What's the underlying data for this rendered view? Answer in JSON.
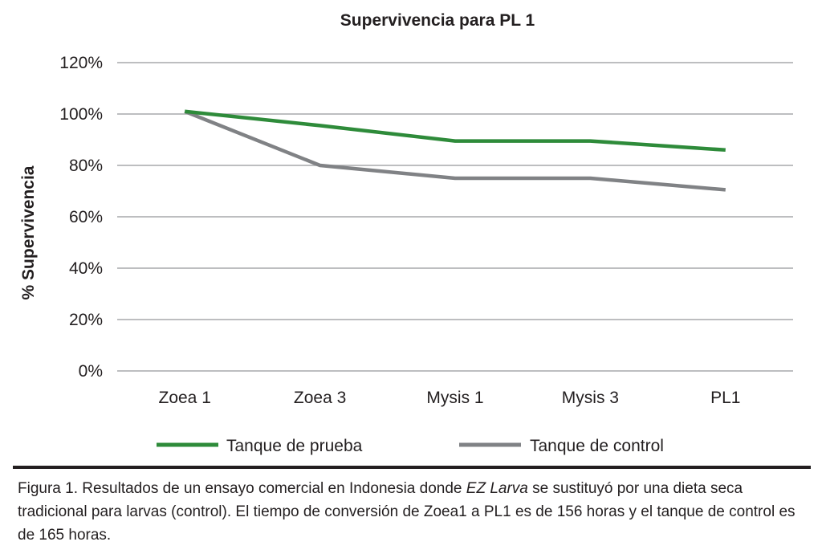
{
  "chart_data": {
    "type": "line",
    "title": "Supervivencia para PL 1",
    "xlabel": "",
    "ylabel": "% Supervivencia",
    "categories": [
      "Zoea 1",
      "Zoea 3",
      "Mysis 1",
      "Mysis 3",
      "PL1"
    ],
    "ylim": [
      0,
      120
    ],
    "yticks": [
      0,
      20,
      40,
      60,
      80,
      100,
      120
    ],
    "ytick_labels": [
      "0%",
      "20%",
      "40%",
      "60%",
      "80%",
      "100%",
      "120%"
    ],
    "grid": true,
    "legend_position": "bottom",
    "series": [
      {
        "name": "Tanque de prueba",
        "color": "#2e8b3a",
        "values": [
          101,
          95.5,
          89.5,
          89.5,
          86
        ]
      },
      {
        "name": "Tanque de control",
        "color": "#808285",
        "values": [
          101,
          80,
          75,
          75,
          70.5
        ]
      }
    ]
  },
  "caption": {
    "figure_label": "Figura 1.",
    "text_before": " Resultados de un ensayo comercial en Indonesia donde ",
    "product": "EZ Larva",
    "text_after": " se sustituyó por una dieta seca tradicional para larvas (control). El tiempo de conversión de Zoea1 a PL1 es de 156 horas y el tanque de control es de 165 horas."
  }
}
